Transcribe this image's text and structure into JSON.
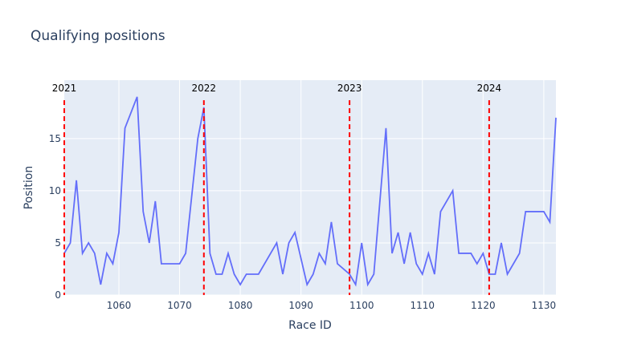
{
  "chart_data": {
    "type": "line",
    "title": "Qualifying positions",
    "x_label": "Race ID",
    "y_label": "Position",
    "series": [
      {
        "name": "Position",
        "color": "#636efa",
        "x": [
          1051,
          1052,
          1053,
          1054,
          1055,
          1056,
          1057,
          1058,
          1059,
          1060,
          1061,
          1063,
          1064,
          1065,
          1066,
          1067,
          1070,
          1071,
          1073,
          1074,
          1075,
          1076,
          1077,
          1078,
          1079,
          1080,
          1081,
          1083,
          1086,
          1087,
          1088,
          1089,
          1091,
          1092,
          1093,
          1094,
          1095,
          1096,
          1098,
          1099,
          1100,
          1101,
          1102,
          1104,
          1105,
          1106,
          1107,
          1108,
          1109,
          1110,
          1111,
          1112,
          1113,
          1115,
          1116,
          1118,
          1119,
          1120,
          1121,
          1122,
          1123,
          1124,
          1126,
          1127,
          1130,
          1131,
          1132
        ],
        "values": [
          4,
          5,
          11,
          4,
          5,
          4,
          1,
          4,
          3,
          6,
          16,
          19,
          8,
          5,
          9,
          3,
          3,
          4,
          15,
          18,
          4,
          2,
          2,
          4,
          2,
          1,
          2,
          2,
          5,
          2,
          5,
          6,
          1,
          2,
          4,
          3,
          7,
          3,
          2,
          1,
          5,
          1,
          2,
          16,
          4,
          6,
          3,
          6,
          3,
          2,
          4,
          2,
          8,
          10,
          4,
          4,
          3,
          4,
          2,
          2,
          5,
          2,
          4,
          8,
          8,
          7,
          17
        ]
      }
    ],
    "vlines": [
      {
        "x": 1051,
        "label": "2021"
      },
      {
        "x": 1074,
        "label": "2022"
      },
      {
        "x": 1098,
        "label": "2023"
      },
      {
        "x": 1121,
        "label": "2024"
      }
    ],
    "vline_color": "#ff0000",
    "xlim": [
      1051,
      1132
    ],
    "ylim": [
      0,
      20.6
    ],
    "xticks": [
      1060,
      1070,
      1080,
      1090,
      1100,
      1110,
      1120,
      1130
    ],
    "yticks": [
      0,
      5,
      10,
      15
    ],
    "grid": true
  }
}
